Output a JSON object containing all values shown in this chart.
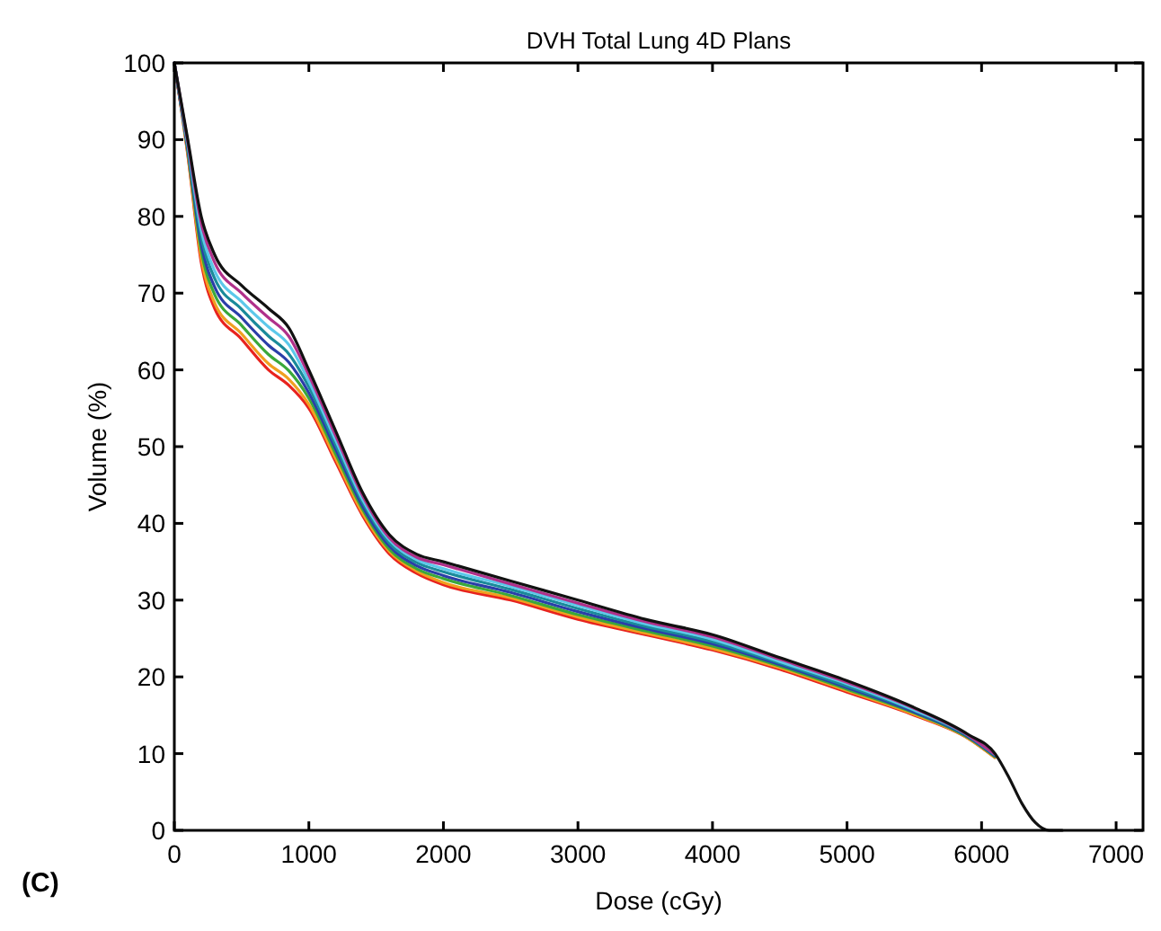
{
  "chart_data": {
    "type": "line",
    "title": "DVH Total Lung 4D Plans",
    "xlabel": "Dose (cGy)",
    "ylabel": "Volume (%)",
    "annotations": [
      "(C)"
    ],
    "x": [
      0,
      100,
      200,
      300,
      500,
      700,
      850,
      1000,
      1200,
      1400,
      1600,
      1800,
      2000,
      2500,
      3000,
      3500,
      4000,
      4500,
      5000,
      5500,
      5900,
      6100,
      6200,
      6300,
      6400,
      6500,
      6600
    ],
    "xlim": [
      0,
      7200
    ],
    "xticks": [
      0,
      1000,
      2000,
      3000,
      4000,
      5000,
      6000,
      7000
    ],
    "ylim": [
      0,
      100
    ],
    "yticks": [
      0,
      10,
      20,
      30,
      40,
      50,
      60,
      70,
      80,
      90,
      100
    ],
    "series": [
      {
        "color": "#e8231e",
        "values": [
          100,
          88,
          74,
          68,
          64,
          60,
          58,
          55,
          48,
          41,
          36,
          33.5,
          32,
          30,
          27.5,
          25.5,
          23.5,
          21,
          18,
          15,
          12,
          9.5,
          null,
          null,
          null,
          null,
          null
        ]
      },
      {
        "color": "#f0a020",
        "values": [
          100,
          88.2,
          74.6,
          68.7,
          64.7,
          60.8,
          58.8,
          55.5,
          48.4,
          41.3,
          36.3,
          33.8,
          32.3,
          30.3,
          27.8,
          25.7,
          23.7,
          21.2,
          18.2,
          15.1,
          12,
          9.5,
          null,
          null,
          null,
          null,
          null
        ]
      },
      {
        "color": "#3aa83a",
        "values": [
          100,
          88.5,
          75.5,
          69.8,
          65.8,
          62,
          59.9,
          56.3,
          49,
          41.8,
          36.6,
          34.1,
          32.8,
          30.6,
          28.1,
          26,
          24,
          21.4,
          18.4,
          15.3,
          12.1,
          9.6,
          null,
          null,
          null,
          null,
          null
        ]
      },
      {
        "color": "#2a3ea8",
        "values": [
          100,
          88.8,
          76.4,
          70.8,
          66.8,
          63.2,
          61,
          57,
          49.6,
          42.2,
          37,
          34.5,
          33.2,
          31,
          28.5,
          26.3,
          24.3,
          21.6,
          18.6,
          15.4,
          12.2,
          9.7,
          null,
          null,
          null,
          null,
          null
        ]
      },
      {
        "color": "#1a8a9a",
        "values": [
          100,
          89.1,
          77.3,
          71.9,
          67.9,
          64.4,
          62.1,
          57.8,
          50.2,
          42.7,
          37.4,
          34.9,
          33.7,
          31.4,
          28.9,
          26.6,
          24.6,
          21.8,
          18.8,
          15.6,
          12.3,
          9.8,
          null,
          null,
          null,
          null,
          null
        ]
      },
      {
        "color": "#5cc8ea",
        "values": [
          100,
          89.4,
          78.2,
          72.9,
          68.9,
          65.6,
          63.3,
          58.5,
          50.8,
          43.1,
          37.8,
          35.3,
          34.1,
          31.8,
          29.3,
          26.9,
          24.9,
          22,
          19.1,
          15.7,
          12.4,
          9.9,
          null,
          null,
          null,
          null,
          null
        ]
      },
      {
        "color": "#b0308a",
        "values": [
          100,
          89.7,
          79.1,
          74,
          70,
          66.8,
          64.4,
          59.3,
          51.4,
          43.6,
          38.1,
          35.6,
          34.6,
          32.1,
          29.6,
          27.2,
          25.2,
          22.3,
          19.3,
          15.9,
          12.4,
          9.9,
          null,
          null,
          null,
          null,
          null
        ]
      },
      {
        "color": "#111111",
        "values": [
          100,
          90,
          80,
          75,
          71,
          68,
          65.5,
          60,
          52,
          44,
          38.5,
          36,
          35,
          32.5,
          30,
          27.5,
          25.5,
          22.5,
          19.5,
          16,
          12.5,
          10,
          7,
          3.5,
          1,
          0,
          0
        ]
      }
    ]
  }
}
